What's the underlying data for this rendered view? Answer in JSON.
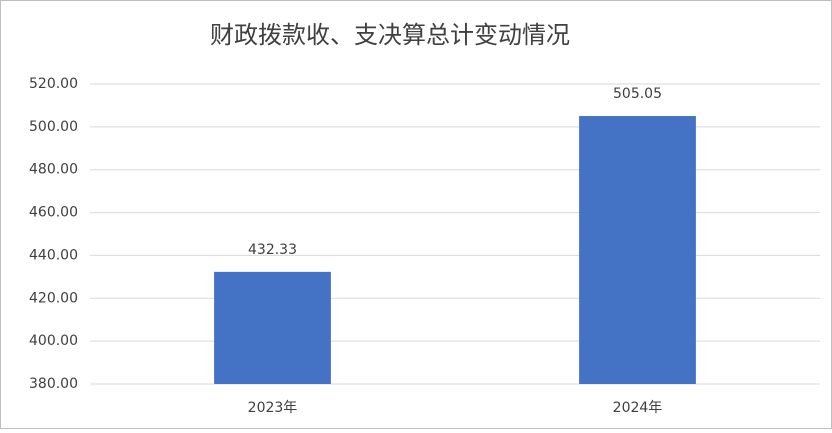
{
  "chart_data": {
    "type": "bar",
    "title": "财政拨款收、支决算总计变动情况",
    "categories": [
      "2023年",
      "2024年"
    ],
    "values": [
      432.33,
      505.05
    ],
    "color": "#4472c4",
    "ylim": [
      380,
      520
    ],
    "yticks": [
      {
        "value": 380,
        "label": "380.00"
      },
      {
        "value": 400,
        "label": "400.00"
      },
      {
        "value": 420,
        "label": "420.00"
      },
      {
        "value": 440,
        "label": "440.00"
      },
      {
        "value": 460,
        "label": "460.00"
      },
      {
        "value": 480,
        "label": "480.00"
      },
      {
        "value": 500,
        "label": "500.00"
      },
      {
        "value": 520,
        "label": "520.00"
      }
    ],
    "grid": true,
    "data_labels": true
  }
}
